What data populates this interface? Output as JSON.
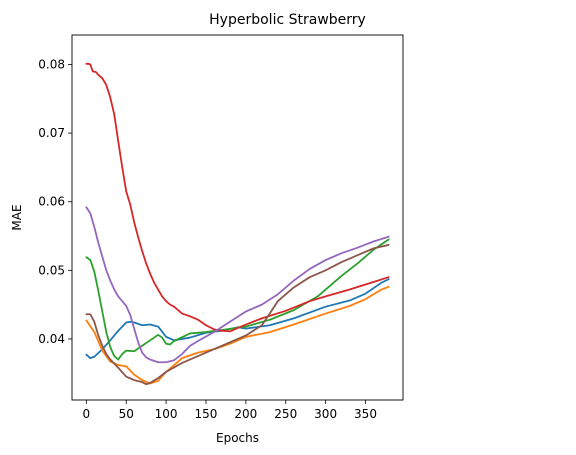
{
  "chart_data": {
    "type": "line",
    "title": "Hyperbolic Strawberry",
    "xlabel": "Epochs",
    "ylabel": "MAE",
    "xlim": [
      -18,
      397
    ],
    "ylim": [
      0.0311,
      0.0843
    ],
    "xticks": [
      0,
      50,
      100,
      150,
      200,
      250,
      300,
      350
    ],
    "xtick_labels": [
      "0",
      "50",
      "100",
      "150",
      "200",
      "250",
      "300",
      "350"
    ],
    "yticks": [
      0.04,
      0.05,
      0.06,
      0.07,
      0.08
    ],
    "ytick_labels": [
      "0.04",
      "0.05",
      "0.06",
      "0.07",
      "0.08"
    ],
    "grid": false,
    "legend": "none",
    "series": [
      {
        "color": "#1f77b4",
        "x": [
          0,
          5,
          10,
          20,
          30,
          40,
          50,
          55,
          60,
          70,
          80,
          90,
          100,
          110,
          130,
          150,
          170,
          190,
          200,
          230,
          260,
          300,
          330,
          350,
          370,
          379
        ],
        "y": [
          0.0377,
          0.0372,
          0.0374,
          0.0385,
          0.0398,
          0.0412,
          0.0424,
          0.0425,
          0.0424,
          0.042,
          0.0421,
          0.0418,
          0.0403,
          0.0398,
          0.0402,
          0.0409,
          0.0412,
          0.0417,
          0.0415,
          0.042,
          0.043,
          0.0447,
          0.0456,
          0.0466,
          0.0482,
          0.0487
        ]
      },
      {
        "color": "#ff7f0e",
        "x": [
          0,
          10,
          20,
          30,
          40,
          50,
          60,
          70,
          80,
          90,
          100,
          120,
          140,
          160,
          180,
          200,
          230,
          260,
          300,
          330,
          350,
          370,
          379
        ],
        "y": [
          0.0427,
          0.041,
          0.0383,
          0.0367,
          0.0362,
          0.036,
          0.0348,
          0.034,
          0.0335,
          0.0339,
          0.0352,
          0.0372,
          0.038,
          0.0385,
          0.0393,
          0.0403,
          0.041,
          0.0421,
          0.0437,
          0.0448,
          0.0458,
          0.0472,
          0.0476
        ]
      },
      {
        "color": "#2ca02c",
        "x": [
          0,
          5,
          10,
          15,
          20,
          25,
          30,
          35,
          40,
          45,
          50,
          60,
          70,
          80,
          90,
          95,
          100,
          105,
          110,
          130,
          150,
          170,
          200,
          230,
          260,
          290,
          320,
          340,
          360,
          379
        ],
        "y": [
          0.0519,
          0.0515,
          0.0498,
          0.047,
          0.044,
          0.041,
          0.0388,
          0.0375,
          0.037,
          0.0378,
          0.0383,
          0.0382,
          0.039,
          0.0398,
          0.0406,
          0.0402,
          0.0393,
          0.0392,
          0.0397,
          0.0408,
          0.041,
          0.0413,
          0.0418,
          0.0428,
          0.0442,
          0.0462,
          0.0492,
          0.051,
          0.053,
          0.0545
        ]
      },
      {
        "color": "#d62728",
        "x": [
          0,
          3,
          5,
          8,
          12,
          15,
          20,
          25,
          30,
          35,
          40,
          45,
          50,
          55,
          60,
          65,
          70,
          75,
          80,
          85,
          90,
          95,
          100,
          105,
          110,
          120,
          130,
          140,
          150,
          160,
          170,
          180,
          190,
          200,
          220,
          250,
          280,
          300,
          330,
          360,
          379
        ],
        "y": [
          0.0801,
          0.0801,
          0.08,
          0.079,
          0.0789,
          0.0785,
          0.078,
          0.077,
          0.0752,
          0.0727,
          0.0688,
          0.065,
          0.0615,
          0.0596,
          0.057,
          0.0548,
          0.0528,
          0.051,
          0.0495,
          0.0482,
          0.0472,
          0.0462,
          0.0455,
          0.045,
          0.0447,
          0.0437,
          0.0433,
          0.0428,
          0.042,
          0.0414,
          0.0412,
          0.0411,
          0.0416,
          0.0421,
          0.043,
          0.0441,
          0.0455,
          0.0462,
          0.0472,
          0.0483,
          0.049
        ]
      },
      {
        "color": "#9467bd",
        "x": [
          0,
          5,
          10,
          15,
          20,
          25,
          30,
          35,
          40,
          45,
          50,
          55,
          60,
          65,
          70,
          75,
          80,
          85,
          90,
          100,
          110,
          120,
          130,
          140,
          160,
          180,
          200,
          220,
          240,
          260,
          280,
          300,
          320,
          340,
          360,
          379
        ],
        "y": [
          0.0592,
          0.0583,
          0.0563,
          0.054,
          0.052,
          0.05,
          0.0485,
          0.0472,
          0.0462,
          0.0455,
          0.0448,
          0.0435,
          0.0415,
          0.0395,
          0.038,
          0.0373,
          0.037,
          0.0368,
          0.0366,
          0.0366,
          0.0369,
          0.0378,
          0.039,
          0.0397,
          0.041,
          0.0425,
          0.044,
          0.045,
          0.0465,
          0.0485,
          0.0502,
          0.0515,
          0.0525,
          0.0533,
          0.0542,
          0.0549
        ]
      },
      {
        "color": "#8c564b",
        "x": [
          0,
          5,
          10,
          15,
          20,
          25,
          30,
          40,
          50,
          60,
          70,
          75,
          80,
          90,
          100,
          120,
          140,
          160,
          180,
          200,
          220,
          230,
          240,
          260,
          280,
          300,
          320,
          340,
          360,
          379
        ],
        "y": [
          0.0436,
          0.0436,
          0.0425,
          0.0405,
          0.039,
          0.0378,
          0.037,
          0.0358,
          0.0345,
          0.034,
          0.0337,
          0.0334,
          0.0336,
          0.0343,
          0.0352,
          0.0365,
          0.0375,
          0.0385,
          0.0395,
          0.0405,
          0.042,
          0.0437,
          0.0455,
          0.0475,
          0.049,
          0.05,
          0.0512,
          0.0522,
          0.0532,
          0.0537
        ]
      }
    ]
  }
}
